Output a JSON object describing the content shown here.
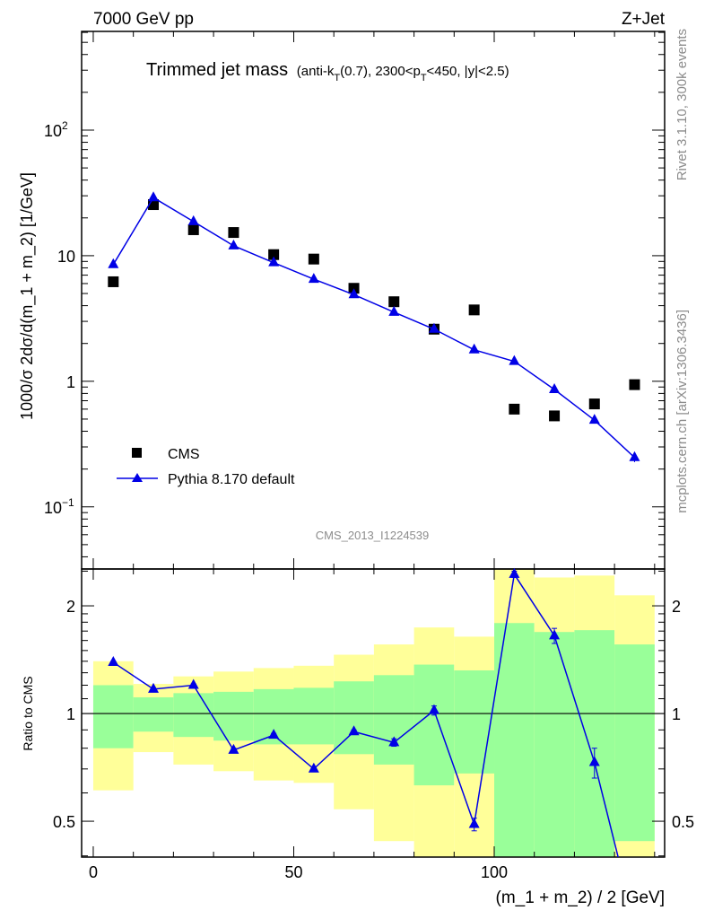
{
  "header": {
    "left": "7000 GeV pp",
    "right": "Z+Jet"
  },
  "side_labels": {
    "rivet": "Rivet 3.1.10,  300k events",
    "mcplots": "mcplots.cern.ch [arXiv:1306.3436]"
  },
  "analysis_id": "CMS_2013_I1224539",
  "colors": {
    "data": "#000000",
    "mc": "#0000e6",
    "stat_band": "#99ff99",
    "total_band": "#ffff99"
  },
  "chart_data": [
    {
      "type": "scatter",
      "panel": "main",
      "title": "Trimmed jet mass",
      "title_sub": [
        "(anti-k",
        "T",
        "(0.7), 2300<p",
        "T",
        "<450, |y|<2.5)"
      ],
      "ylabel": "1000/σ 2dσ/d(m_1 + m_2) [1/GeV]",
      "yscale": "log",
      "ylim": [
        0.032,
        611
      ],
      "xlim": [
        -2.9,
        142.5
      ],
      "ytick_labels": [
        {
          "v": 100,
          "t": "10",
          "sup": "2"
        },
        {
          "v": 10,
          "t": "10",
          "sup": ""
        },
        {
          "v": 1,
          "t": "1",
          "sup": ""
        },
        {
          "v": 0.1,
          "t": "10",
          "sup": "−1"
        }
      ],
      "x": [
        5,
        15,
        25,
        35,
        45,
        55,
        65,
        75,
        85,
        95,
        105,
        115,
        125,
        135
      ],
      "series": [
        {
          "name": "CMS",
          "marker": "square",
          "values": [
            6.2,
            25.5,
            16.1,
            15.3,
            10.2,
            9.4,
            5.5,
            4.3,
            2.6,
            3.7,
            0.6,
            0.53,
            0.66,
            0.94
          ]
        },
        {
          "name": "Pythia 8.170 default",
          "marker": "triangle",
          "values": [
            8.5,
            29,
            18.7,
            12.0,
            8.8,
            6.5,
            4.9,
            3.55,
            2.6,
            1.78,
            1.44,
            0.86,
            0.49,
            0.247
          ],
          "errors": [
            0.2,
            0.6,
            0.4,
            0.3,
            0.2,
            0.15,
            0.12,
            0.1,
            0.07,
            0.05,
            0.04,
            0.03,
            0.03,
            0.02
          ]
        }
      ],
      "legend": {
        "placement": "lower-left"
      }
    },
    {
      "type": "line",
      "panel": "ratio",
      "ylabel": "Ratio to CMS",
      "xlabel": "(m_1 + m_2) / 2 [GeV]",
      "yscale": "log",
      "ylim": [
        0.397,
        2.535
      ],
      "xlim": [
        -2.9,
        142.5
      ],
      "ytick_labels": [
        {
          "v": 2,
          "t": "2"
        },
        {
          "v": 1,
          "t": "1"
        },
        {
          "v": 0.5,
          "t": "0.5"
        }
      ],
      "xtick_labels": [
        {
          "v": 0,
          "t": "0"
        },
        {
          "v": 50,
          "t": "50"
        },
        {
          "v": 100,
          "t": "100"
        }
      ],
      "bin_edges": [
        0,
        10,
        20,
        30,
        40,
        50,
        60,
        70,
        80,
        90,
        100,
        110,
        120,
        130,
        140
      ],
      "stat_band": {
        "up": [
          1.2,
          1.11,
          1.14,
          1.15,
          1.17,
          1.18,
          1.23,
          1.28,
          1.37,
          1.32,
          1.79,
          1.69,
          1.71,
          1.56
        ],
        "down": [
          0.8,
          0.89,
          0.86,
          0.84,
          0.82,
          0.82,
          0.77,
          0.72,
          0.63,
          0.68,
          0.3,
          0.3,
          0.3,
          0.44
        ]
      },
      "total_band": {
        "up": [
          1.4,
          1.21,
          1.27,
          1.31,
          1.34,
          1.36,
          1.46,
          1.56,
          1.74,
          1.64,
          2.6,
          2.4,
          2.43,
          2.14
        ],
        "down": [
          0.61,
          0.78,
          0.72,
          0.69,
          0.65,
          0.64,
          0.54,
          0.44,
          0.35,
          0.3,
          0.2,
          0.2,
          0.2,
          0.3
        ]
      },
      "x": [
        5,
        15,
        25,
        35,
        45,
        55,
        65,
        75,
        85,
        95,
        105,
        115,
        125,
        135
      ],
      "ratio": [
        1.39,
        1.17,
        1.2,
        0.79,
        0.87,
        0.7,
        0.89,
        0.83,
        1.02,
        0.49,
        2.45,
        1.65,
        0.73,
        0.26
      ],
      "ratio_errors": [
        0.01,
        0.01,
        0.01,
        0.01,
        0.01,
        0.01,
        0.01,
        0.02,
        0.03,
        0.02,
        0.05,
        0.08,
        0.07,
        0.03
      ]
    }
  ]
}
